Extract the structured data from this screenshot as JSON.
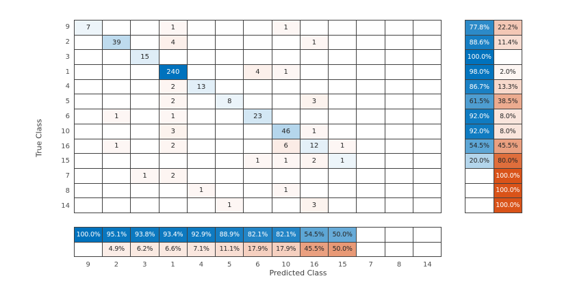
{
  "chart_data": {
    "type": "heatmap",
    "subtype": "confusion-matrix",
    "title": "",
    "xlabel": "Predicted Class",
    "ylabel": "True Class",
    "classes": [
      "9",
      "2",
      "3",
      "1",
      "4",
      "5",
      "6",
      "10",
      "16",
      "15",
      "7",
      "8",
      "14"
    ],
    "matrix": [
      [
        7,
        0,
        0,
        1,
        0,
        0,
        0,
        1,
        0,
        0,
        0,
        0,
        0
      ],
      [
        0,
        39,
        0,
        4,
        0,
        0,
        0,
        0,
        1,
        0,
        0,
        0,
        0
      ],
      [
        0,
        0,
        15,
        0,
        0,
        0,
        0,
        0,
        0,
        0,
        0,
        0,
        0
      ],
      [
        0,
        0,
        0,
        240,
        0,
        0,
        4,
        1,
        0,
        0,
        0,
        0,
        0
      ],
      [
        0,
        0,
        0,
        2,
        13,
        0,
        0,
        0,
        0,
        0,
        0,
        0,
        0
      ],
      [
        0,
        0,
        0,
        2,
        0,
        8,
        0,
        0,
        3,
        0,
        0,
        0,
        0
      ],
      [
        0,
        1,
        0,
        1,
        0,
        0,
        23,
        0,
        0,
        0,
        0,
        0,
        0
      ],
      [
        0,
        0,
        0,
        3,
        0,
        0,
        0,
        46,
        1,
        0,
        0,
        0,
        0
      ],
      [
        0,
        1,
        0,
        2,
        0,
        0,
        0,
        6,
        12,
        1,
        0,
        0,
        0
      ],
      [
        0,
        0,
        0,
        0,
        0,
        0,
        1,
        1,
        2,
        1,
        0,
        0,
        0
      ],
      [
        0,
        0,
        1,
        2,
        0,
        0,
        0,
        0,
        0,
        0,
        0,
        0,
        0
      ],
      [
        0,
        0,
        0,
        0,
        1,
        0,
        0,
        1,
        0,
        0,
        0,
        0,
        0
      ],
      [
        0,
        0,
        0,
        0,
        0,
        1,
        0,
        0,
        3,
        0,
        0,
        0,
        0
      ]
    ],
    "max_count": 240,
    "row_summary": {
      "correct_pct": [
        77.8,
        88.6,
        100.0,
        98.0,
        86.7,
        61.5,
        92.0,
        92.0,
        54.5,
        20.0,
        null,
        null,
        null
      ],
      "incorrect_pct": [
        22.2,
        11.4,
        null,
        2.0,
        13.3,
        38.5,
        8.0,
        8.0,
        45.5,
        80.0,
        100.0,
        100.0,
        100.0
      ]
    },
    "column_summary": {
      "correct_pct": [
        100.0,
        95.1,
        93.8,
        93.4,
        92.9,
        88.9,
        82.1,
        82.1,
        54.5,
        50.0,
        null,
        null,
        null
      ],
      "incorrect_pct": [
        null,
        4.9,
        6.2,
        6.6,
        7.1,
        11.1,
        17.9,
        17.9,
        45.5,
        50.0,
        null,
        null,
        null
      ]
    },
    "layout": {
      "grid_on": true,
      "row_summary_position": "right",
      "column_summary_position": "bottom"
    },
    "colors": {
      "correct": "#0072BD",
      "incorrect": "#D95319",
      "grid_line": "#404040",
      "tick_label": "#4d4d4d",
      "cell_text_dark": "#262626",
      "cell_text_light": "#ffffff",
      "background": "#ffffff"
    }
  }
}
